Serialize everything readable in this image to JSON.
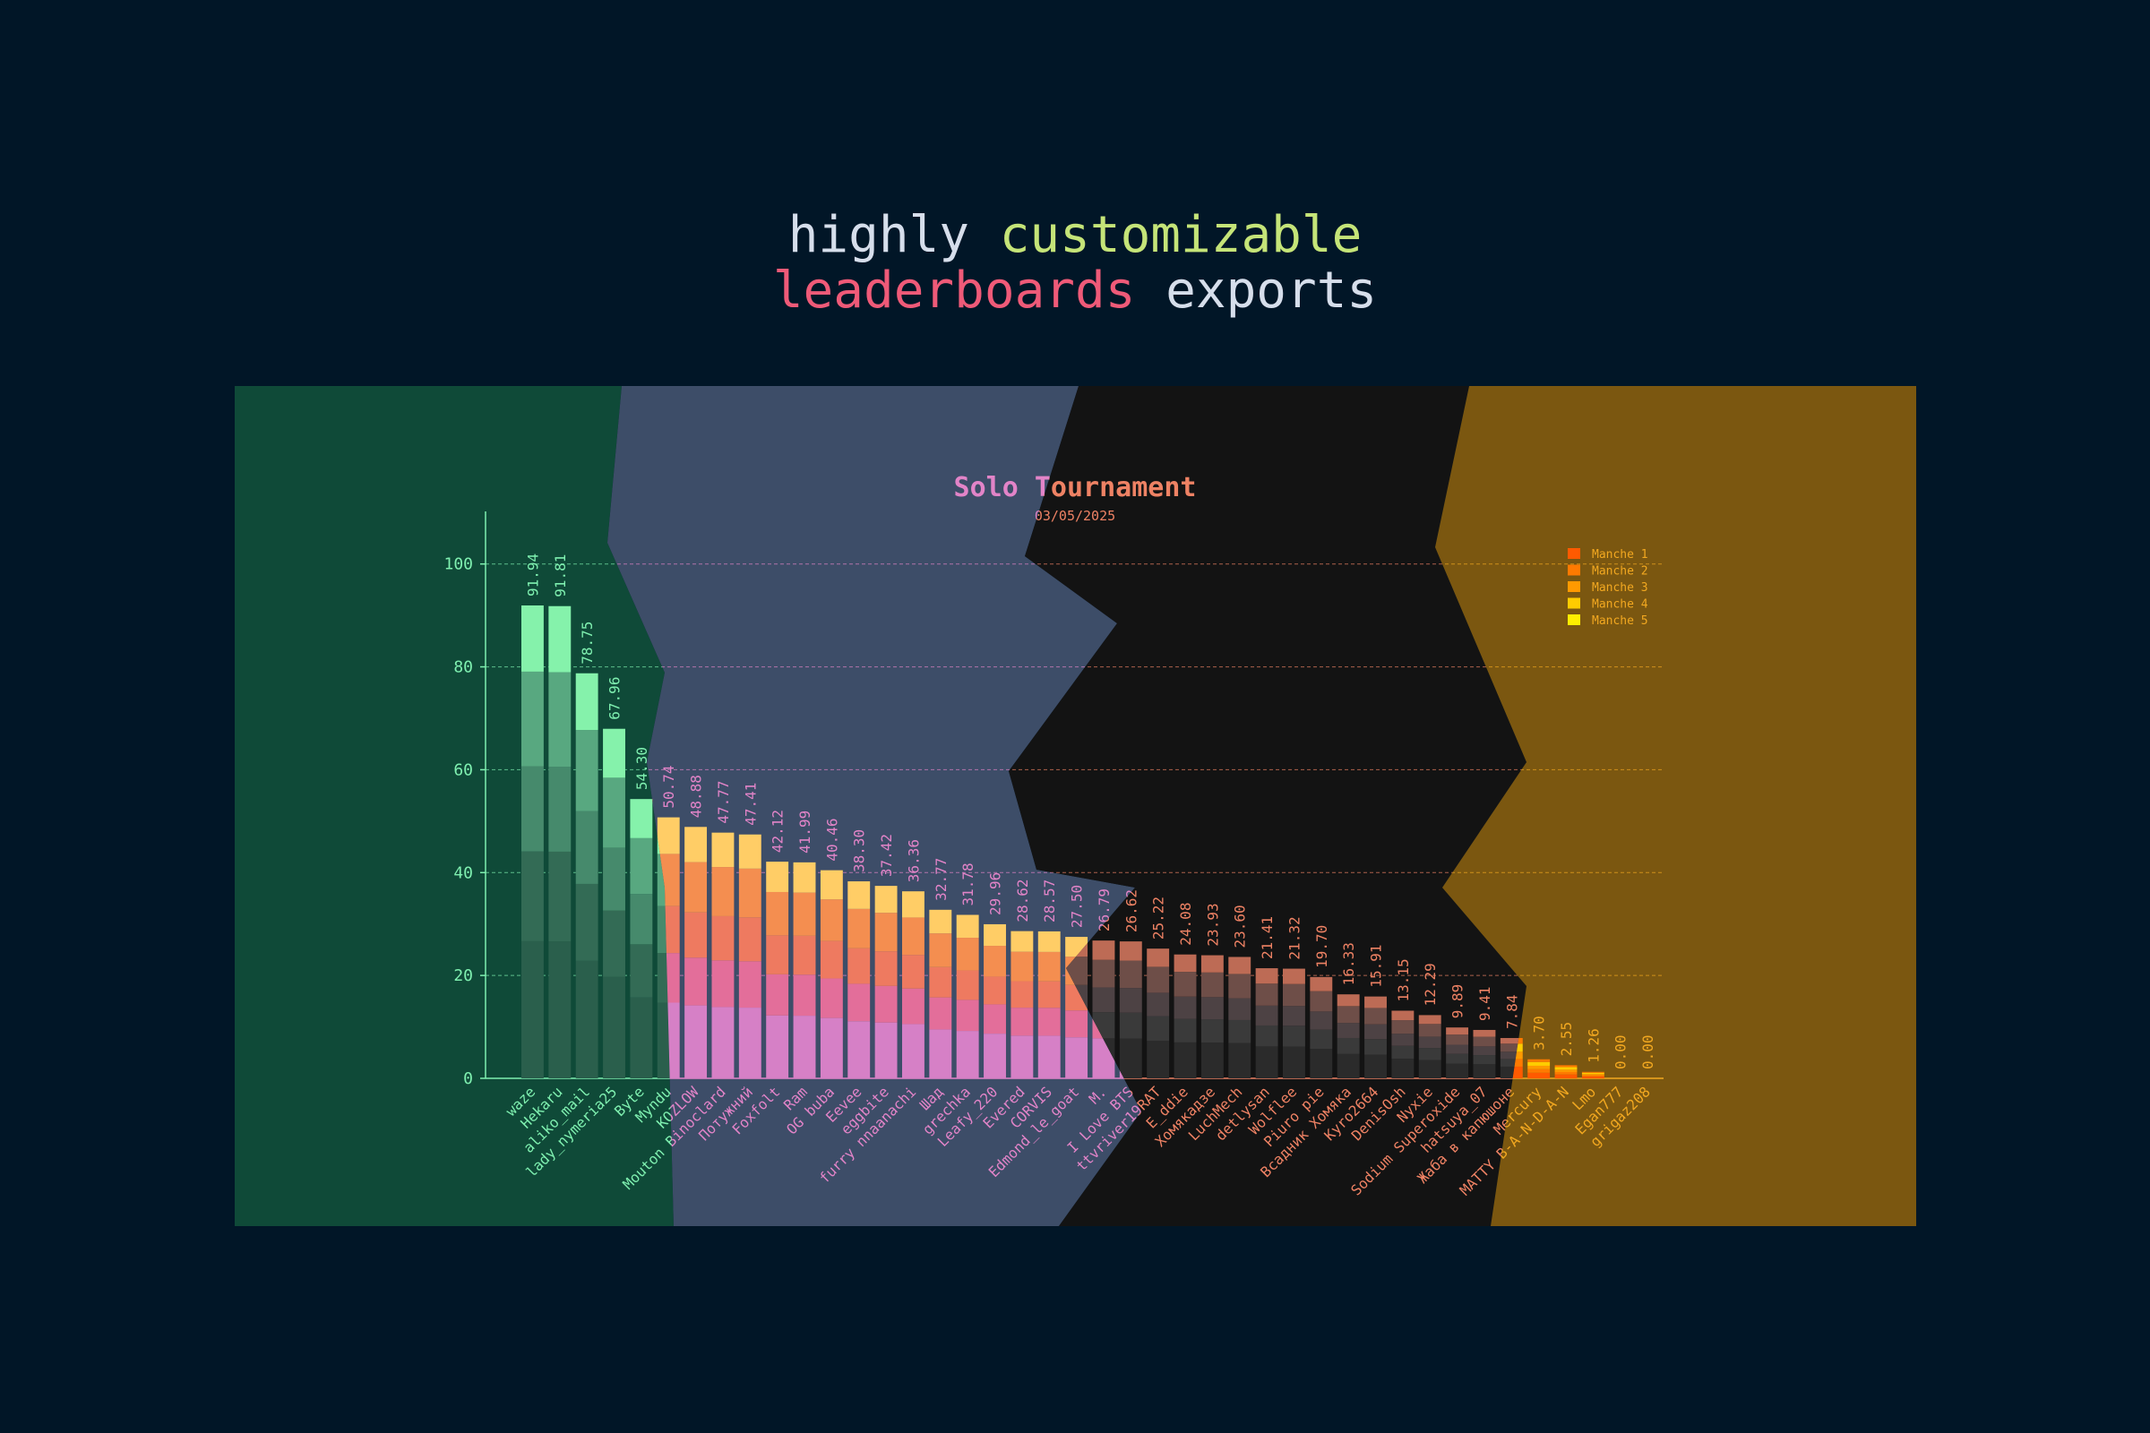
{
  "headline": {
    "line1": [
      {
        "text": "highly ",
        "color": "#d6deeb"
      },
      {
        "text": "customizable",
        "color": "#c5e478"
      }
    ],
    "line2": [
      {
        "text": "leaderboards",
        "color": "#ef5a78"
      },
      {
        "text": " exports",
        "color": "#d6deeb"
      }
    ]
  },
  "chart_data": {
    "type": "bar",
    "stacked": true,
    "title": "Solo Tournament",
    "subtitle": "03/05/2025",
    "xlabel": "",
    "ylabel": "",
    "ylim": [
      0,
      105
    ],
    "yticks": [
      0,
      20,
      40,
      60,
      80,
      100
    ],
    "grid": true,
    "legend_position": "top-right",
    "themes": {
      "green": {
        "bg": "#0f4a38",
        "text": "#7ff0b0",
        "grid": "#7ff0b0",
        "segments": [
          "#2a5f4c",
          "#336b55",
          "#468a6c",
          "#58a880",
          "#6fd098"
        ],
        "top": "#85f2ab"
      },
      "slate": {
        "bg": "#3d4d68",
        "text": "#e284c8",
        "grid": "#e284c8",
        "segments": [
          "#d680c6",
          "#e36e9a",
          "#ee7a60",
          "#f48e50",
          "#fcc25a"
        ],
        "top": "#ffcd66"
      },
      "black": {
        "bg": "#131313",
        "text": "#ee8264",
        "grid": "#ee8264",
        "segments": [
          "#2b2b2b",
          "#3a3a3a",
          "#4d4244",
          "#6e4e48",
          "#a3604f"
        ],
        "top": "#bd6b55"
      },
      "amber": {
        "bg": "#7b5710",
        "text": "#f2a820",
        "grid": "#f2a820",
        "segments": [
          "#ff5a00",
          "#ff7a00",
          "#ff9a00",
          "#ffcc00",
          "#ffee00"
        ],
        "top": "#ff7a00"
      }
    },
    "legend": {
      "theme": "amber",
      "series": [
        {
          "name": "Manche 1",
          "color": "#ff5a00"
        },
        {
          "name": "Manche 2",
          "color": "#ff7a00"
        },
        {
          "name": "Manche 3",
          "color": "#ff9a00"
        },
        {
          "name": "Manche 4",
          "color": "#ffcc00"
        },
        {
          "name": "Manche 5",
          "color": "#ffee00"
        }
      ]
    },
    "players": [
      {
        "name": "waze",
        "value": 91.94,
        "theme": "green"
      },
      {
        "name": "Hekaru",
        "value": 91.81,
        "theme": "green"
      },
      {
        "name": "aliko_mail",
        "value": 78.75,
        "theme": "green"
      },
      {
        "name": "lady_nymeria25",
        "value": 67.96,
        "theme": "green"
      },
      {
        "name": "Byte",
        "value": 54.3,
        "theme": "slate"
      },
      {
        "name": "Myndu",
        "value": 50.74,
        "theme": "slate"
      },
      {
        "name": "KOZLOW",
        "value": 48.88,
        "theme": "slate"
      },
      {
        "name": "Mouton Binoclard",
        "value": 47.77,
        "theme": "slate"
      },
      {
        "name": "Потужний",
        "value": 47.41,
        "theme": "slate"
      },
      {
        "name": "Foxfolt",
        "value": 42.12,
        "theme": "slate"
      },
      {
        "name": "Ram",
        "value": 41.99,
        "theme": "slate"
      },
      {
        "name": "OG buba",
        "value": 40.46,
        "theme": "slate"
      },
      {
        "name": "Eevee",
        "value": 38.3,
        "theme": "slate"
      },
      {
        "name": "eggbite",
        "value": 37.42,
        "theme": "slate"
      },
      {
        "name": "furry nnaanachi",
        "value": 36.36,
        "theme": "slate"
      },
      {
        "name": "Шад",
        "value": 32.77,
        "theme": "slate"
      },
      {
        "name": "grechka",
        "value": 31.78,
        "theme": "slate"
      },
      {
        "name": "Leafy_220",
        "value": 29.96,
        "theme": "slate"
      },
      {
        "name": "Evered",
        "value": 28.62,
        "theme": "slate"
      },
      {
        "name": "CORVIS",
        "value": 28.57,
        "theme": "slate"
      },
      {
        "name": "Edmond_le_goat",
        "value": 27.5,
        "theme": "slate"
      },
      {
        "name": "M.",
        "value": 26.79,
        "theme": "slate"
      },
      {
        "name": "I Love BTS",
        "value": 26.62,
        "theme": "slate"
      },
      {
        "name": "ttvriver19RAT",
        "value": 25.22,
        "theme": "black"
      },
      {
        "name": "E_ddie",
        "value": 24.08,
        "theme": "black"
      },
      {
        "name": "Хомякадзе",
        "value": 23.93,
        "theme": "black"
      },
      {
        "name": "LuchMech",
        "value": 23.6,
        "theme": "black"
      },
      {
        "name": "detlysan",
        "value": 21.41,
        "theme": "black"
      },
      {
        "name": "Wolflee",
        "value": 21.32,
        "theme": "black"
      },
      {
        "name": "Piuro pie",
        "value": 19.7,
        "theme": "black"
      },
      {
        "name": "Всадник Хомяка",
        "value": 16.33,
        "theme": "black"
      },
      {
        "name": "Kyro2664",
        "value": 15.91,
        "theme": "black"
      },
      {
        "name": "DenisOsh",
        "value": 13.15,
        "theme": "black"
      },
      {
        "name": "Nyxie",
        "value": 12.29,
        "theme": "black"
      },
      {
        "name": "Sodium Superoxide",
        "value": 9.89,
        "theme": "black"
      },
      {
        "name": "hatsuya_07",
        "value": 9.41,
        "theme": "black"
      },
      {
        "name": "Жаба в капюшоне",
        "value": 7.84,
        "theme": "black"
      },
      {
        "name": "Mercury",
        "value": 3.7,
        "theme": "black"
      },
      {
        "name": "MATTY B-A-N-D-A-N",
        "value": 2.55,
        "theme": "amber"
      },
      {
        "name": "Lmo",
        "value": 1.26,
        "theme": "amber"
      },
      {
        "name": "Egan777",
        "value": 0.0,
        "theme": "amber"
      },
      {
        "name": "grigaz208",
        "value": 0.0,
        "theme": "amber"
      }
    ]
  }
}
